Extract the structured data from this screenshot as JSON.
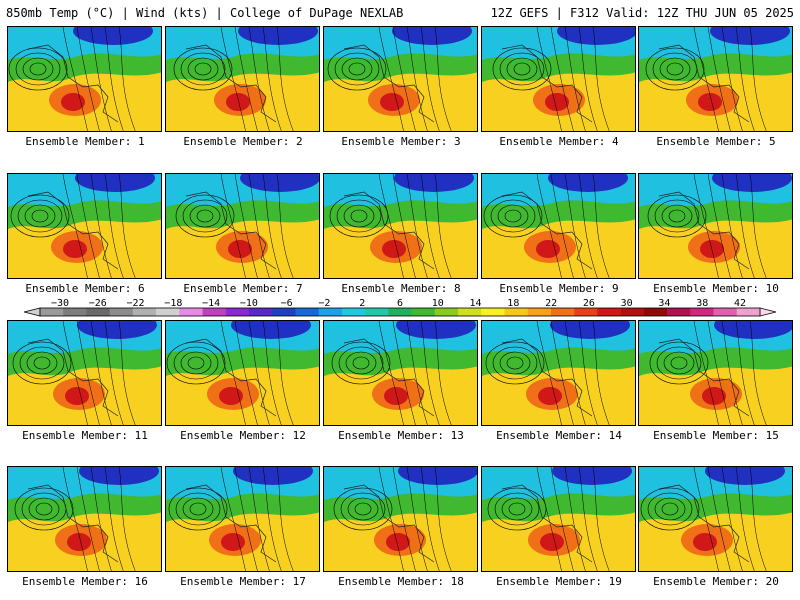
{
  "header": {
    "left": "850mb Temp (°C) | Wind (kts) | College of DuPage NEXLAB",
    "right": "12Z GEFS | F312 Valid: 12Z THU JUN 05 2025"
  },
  "panels": [
    {
      "label": "Ensemble Member: 1"
    },
    {
      "label": "Ensemble Member: 2"
    },
    {
      "label": "Ensemble Member: 3"
    },
    {
      "label": "Ensemble Member: 4"
    },
    {
      "label": "Ensemble Member: 5"
    },
    {
      "label": "Ensemble Member: 6"
    },
    {
      "label": "Ensemble Member: 7"
    },
    {
      "label": "Ensemble Member: 8"
    },
    {
      "label": "Ensemble Member: 9"
    },
    {
      "label": "Ensemble Member: 10"
    },
    {
      "label": "Ensemble Member: 11"
    },
    {
      "label": "Ensemble Member: 12"
    },
    {
      "label": "Ensemble Member: 13"
    },
    {
      "label": "Ensemble Member: 14"
    },
    {
      "label": "Ensemble Member: 15"
    },
    {
      "label": "Ensemble Member: 16"
    },
    {
      "label": "Ensemble Member: 17"
    },
    {
      "label": "Ensemble Member: 18"
    },
    {
      "label": "Ensemble Member: 19"
    },
    {
      "label": "Ensemble Member: 20"
    }
  ],
  "colorbar": {
    "tick_labels": [
      "−30",
      "−26",
      "−22",
      "−18",
      "−14",
      "−10",
      "−6",
      "−2",
      "2",
      "6",
      "10",
      "14",
      "18",
      "22",
      "26",
      "30",
      "34",
      "38",
      "42"
    ],
    "colors": [
      "#9a9a9a",
      "#7d7d7d",
      "#6a6a6a",
      "#8c8c8c",
      "#b0b0b0",
      "#d0d0d0",
      "#e68ae6",
      "#c040c0",
      "#8a2ad0",
      "#5a28c8",
      "#2040c0",
      "#1868d8",
      "#20a0e8",
      "#20c8e0",
      "#20c8a8",
      "#20b060",
      "#40b830",
      "#88cc20",
      "#d0e020",
      "#f8f020",
      "#f8c818",
      "#f8a018",
      "#f07018",
      "#e84018",
      "#d01818",
      "#b01010",
      "#900808",
      "#b01050",
      "#d02880",
      "#e060b0",
      "#f0a0d0"
    ]
  },
  "map_fill": {
    "cold": "#2030c0",
    "cool": "#20c0e0",
    "mild": "#40b830",
    "warm": "#f8d020",
    "hot": "#f07018",
    "very_hot": "#d01818"
  }
}
